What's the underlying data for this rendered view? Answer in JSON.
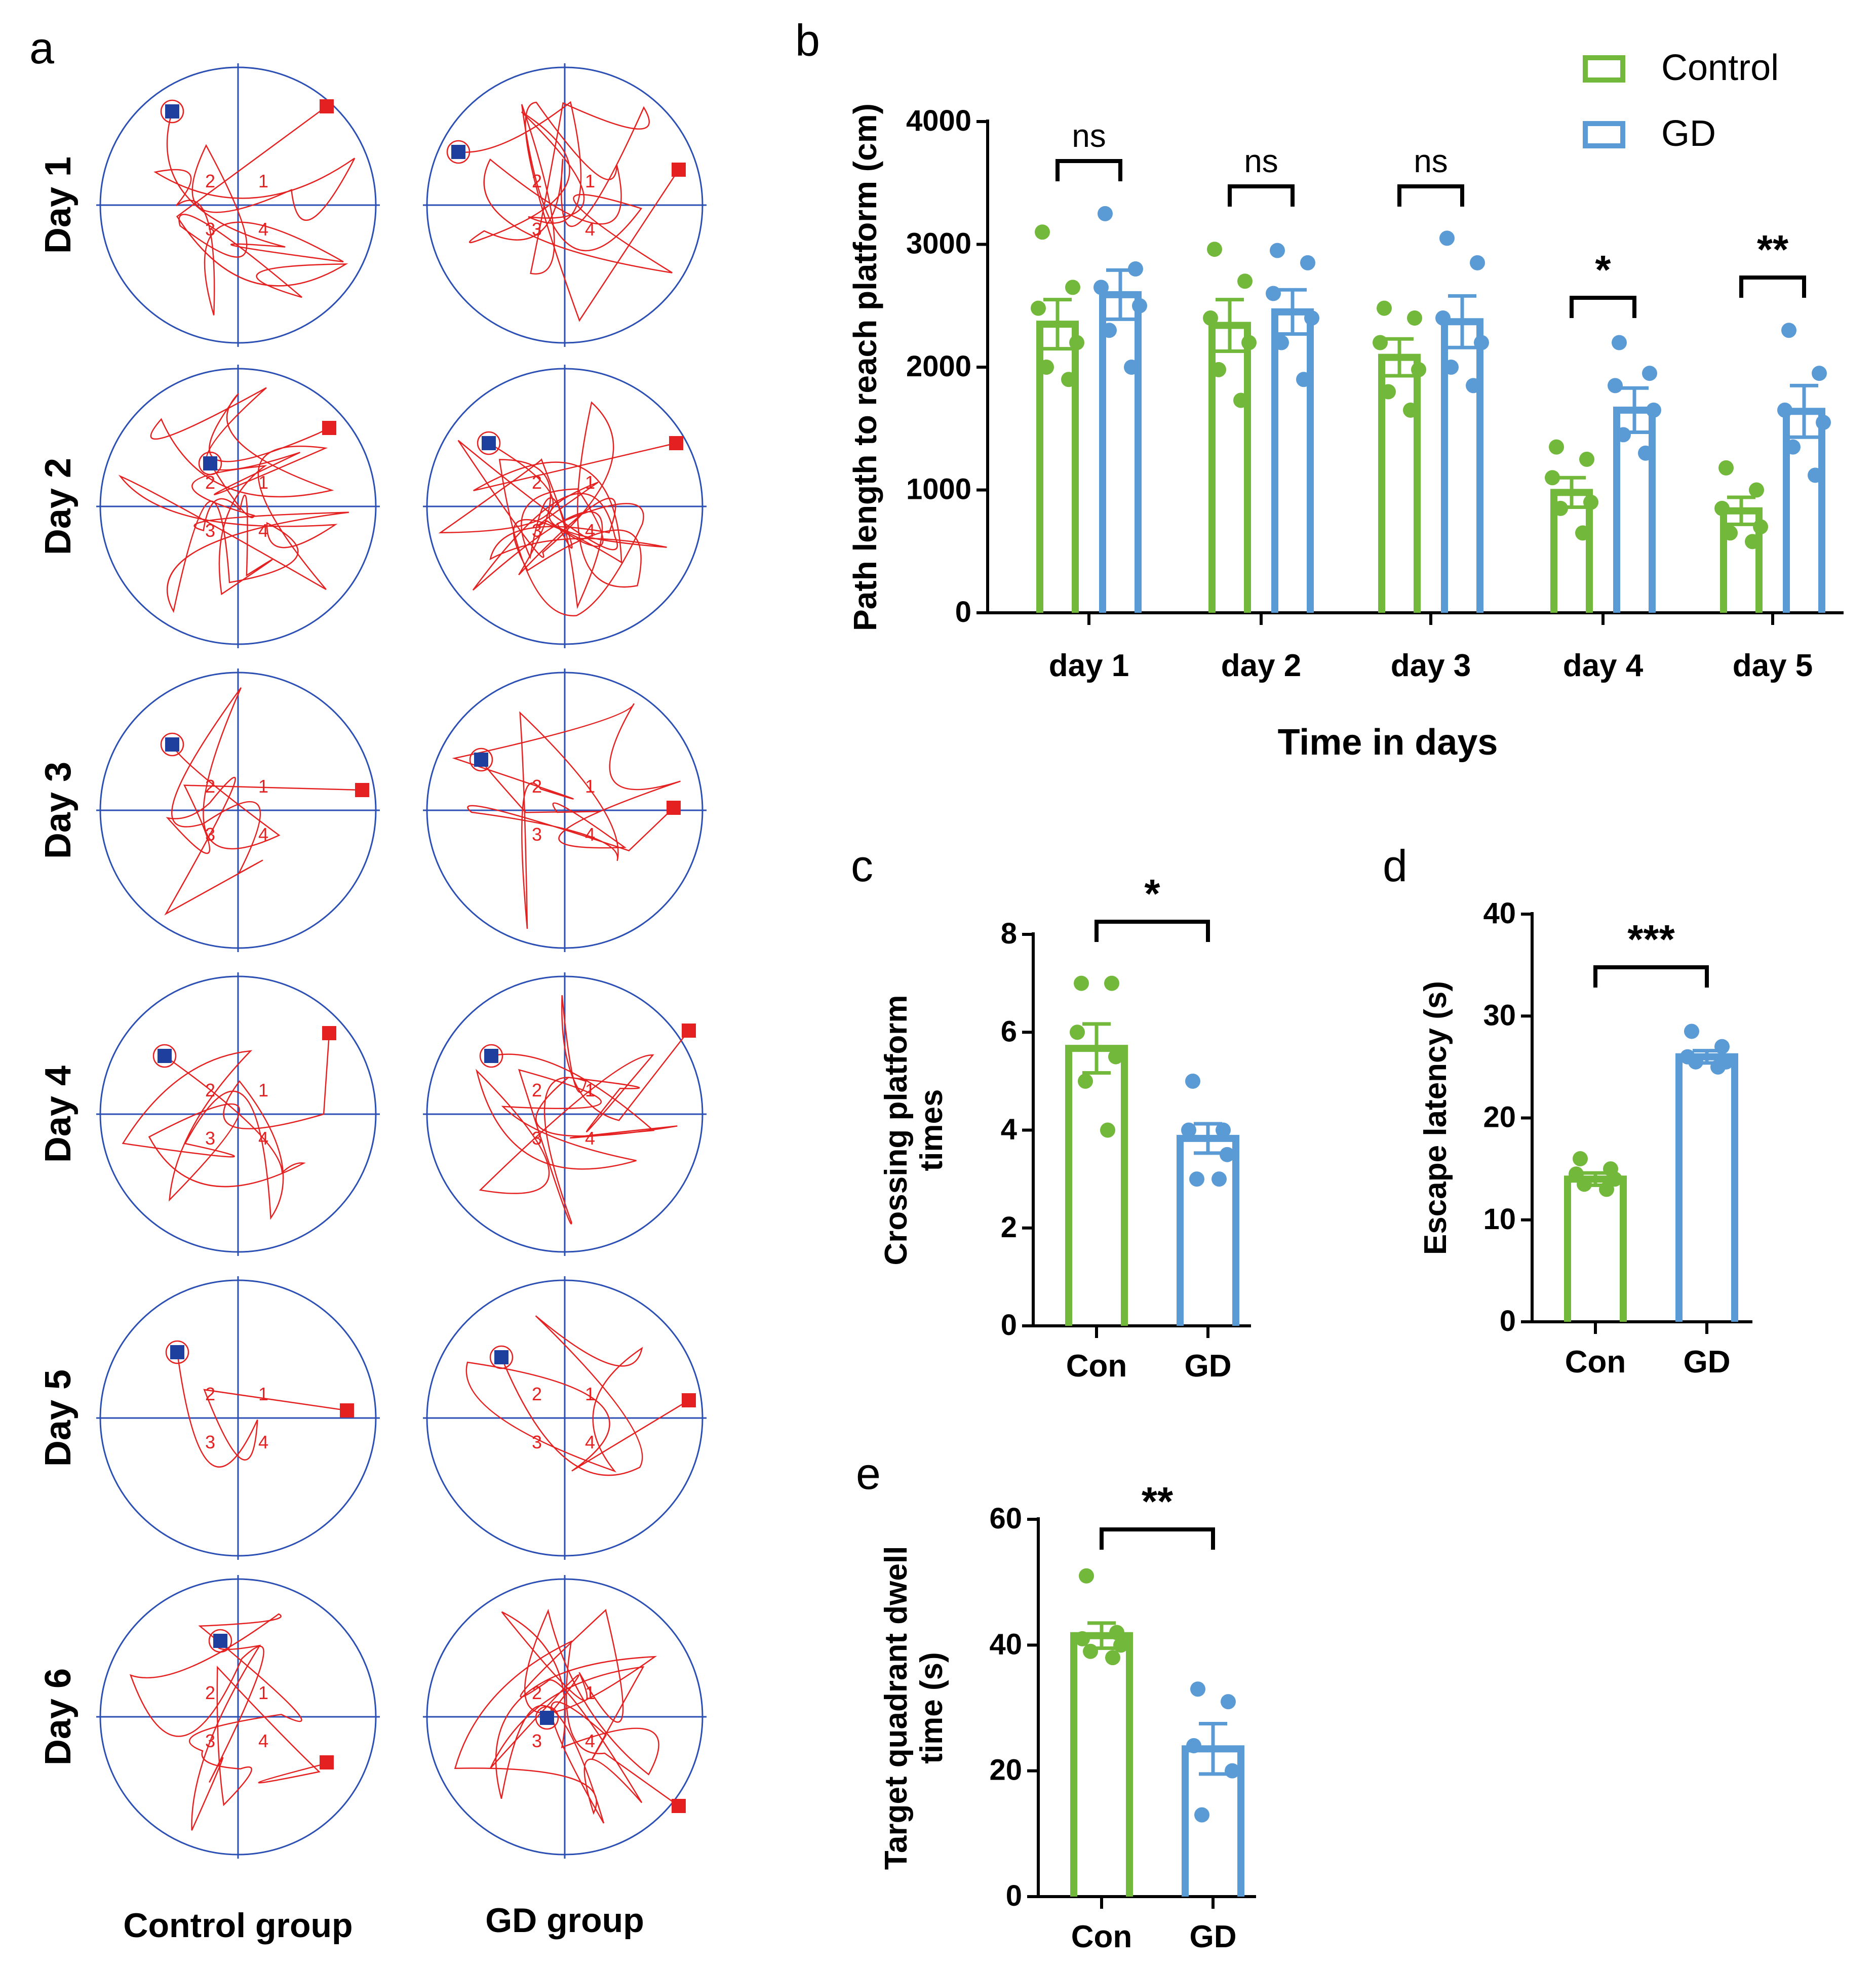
{
  "colors": {
    "control": "#72b83b",
    "gd": "#5b9bd5",
    "path": "#e52020",
    "grid": "#2c4fb3",
    "start": "#1f3f9e",
    "end": "#e52020",
    "text": "#000000"
  },
  "panel_a": {
    "letter": "a",
    "rows": [
      "Day 1",
      "Day 2",
      "Day 3",
      "Day 4",
      "Day 5",
      "Day 6"
    ],
    "columns": [
      "Control group",
      "GD group"
    ],
    "quadrants": [
      "1",
      "2",
      "3",
      "4"
    ]
  },
  "chart_data": [
    {
      "panel": "b",
      "type": "bar",
      "title": "",
      "xlabel": "Time in days",
      "ylabel": "Path length to reach platform (cm)",
      "categories": [
        "day 1",
        "day 2",
        "day 3",
        "day 4",
        "day 5"
      ],
      "ylim": [
        0,
        4000
      ],
      "yticks": [
        0,
        1000,
        2000,
        3000,
        4000
      ],
      "legend": "top-right",
      "series": [
        {
          "name": "Control",
          "color_key": "control",
          "values": [
            2350,
            2340,
            2080,
            980,
            830
          ],
          "sem": [
            200,
            210,
            150,
            120,
            110
          ],
          "points": [
            [
              3100,
              2650,
              2480,
              2200,
              2000,
              1900
            ],
            [
              2960,
              2700,
              2400,
              2200,
              1980,
              1730
            ],
            [
              2480,
              2400,
              2200,
              1980,
              1800,
              1650
            ],
            [
              1350,
              1250,
              1100,
              900,
              850,
              650
            ],
            [
              1180,
              1000,
              850,
              700,
              650,
              580
            ]
          ]
        },
        {
          "name": "GD",
          "color_key": "gd",
          "values": [
            2590,
            2450,
            2370,
            1650,
            1640
          ],
          "sem": [
            200,
            180,
            210,
            180,
            210
          ],
          "points": [
            [
              3250,
              2800,
              2650,
              2500,
              2300,
              2000
            ],
            [
              2950,
              2850,
              2600,
              2400,
              2200,
              1900
            ],
            [
              3050,
              2850,
              2400,
              2200,
              2000,
              1850
            ],
            [
              2200,
              1950,
              1850,
              1650,
              1450,
              1300
            ],
            [
              2300,
              1950,
              1650,
              1550,
              1350,
              1120
            ]
          ]
        }
      ],
      "significance": [
        "ns",
        "ns",
        "ns",
        "*",
        "**"
      ]
    },
    {
      "panel": "c",
      "type": "bar",
      "ylabel": "Crossing platform times",
      "categories": [
        "Con",
        "GD"
      ],
      "ylim": [
        0,
        8
      ],
      "yticks": [
        0,
        2,
        4,
        6,
        8
      ],
      "series": [
        {
          "name": "Con",
          "color_key": "control",
          "value": 5.67,
          "sem": 0.5,
          "points": [
            7,
            7,
            6,
            5.5,
            5,
            4
          ]
        },
        {
          "name": "GD",
          "color_key": "gd",
          "value": 3.83,
          "sem": 0.3,
          "points": [
            5,
            4,
            4,
            3.5,
            3,
            3
          ]
        }
      ],
      "significance": "*"
    },
    {
      "panel": "d",
      "type": "bar",
      "ylabel": "Escape latency (s)",
      "categories": [
        "Con",
        "GD"
      ],
      "ylim": [
        0,
        40
      ],
      "yticks": [
        0,
        10,
        20,
        30,
        40
      ],
      "series": [
        {
          "name": "Con",
          "color_key": "control",
          "value": 14,
          "sem": 0.6,
          "points": [
            16,
            15,
            14.5,
            14,
            13.5,
            13
          ]
        },
        {
          "name": "GD",
          "color_key": "gd",
          "value": 26,
          "sem": 0.6,
          "points": [
            28.5,
            27,
            26,
            25.5,
            25.5,
            25
          ]
        }
      ],
      "significance": "***"
    },
    {
      "panel": "e",
      "type": "bar",
      "ylabel": "Target quadrant dwell time (s)",
      "categories": [
        "Con",
        "GD"
      ],
      "ylim": [
        0,
        60
      ],
      "yticks": [
        0,
        20,
        40,
        60
      ],
      "series": [
        {
          "name": "Con",
          "color_key": "control",
          "value": 41.5,
          "sem": 2,
          "points": [
            51,
            42,
            41,
            40,
            39,
            38
          ]
        },
        {
          "name": "GD",
          "color_key": "gd",
          "value": 23.5,
          "sem": 4,
          "points": [
            33,
            31,
            24,
            20,
            13
          ]
        }
      ],
      "significance": "**"
    }
  ]
}
